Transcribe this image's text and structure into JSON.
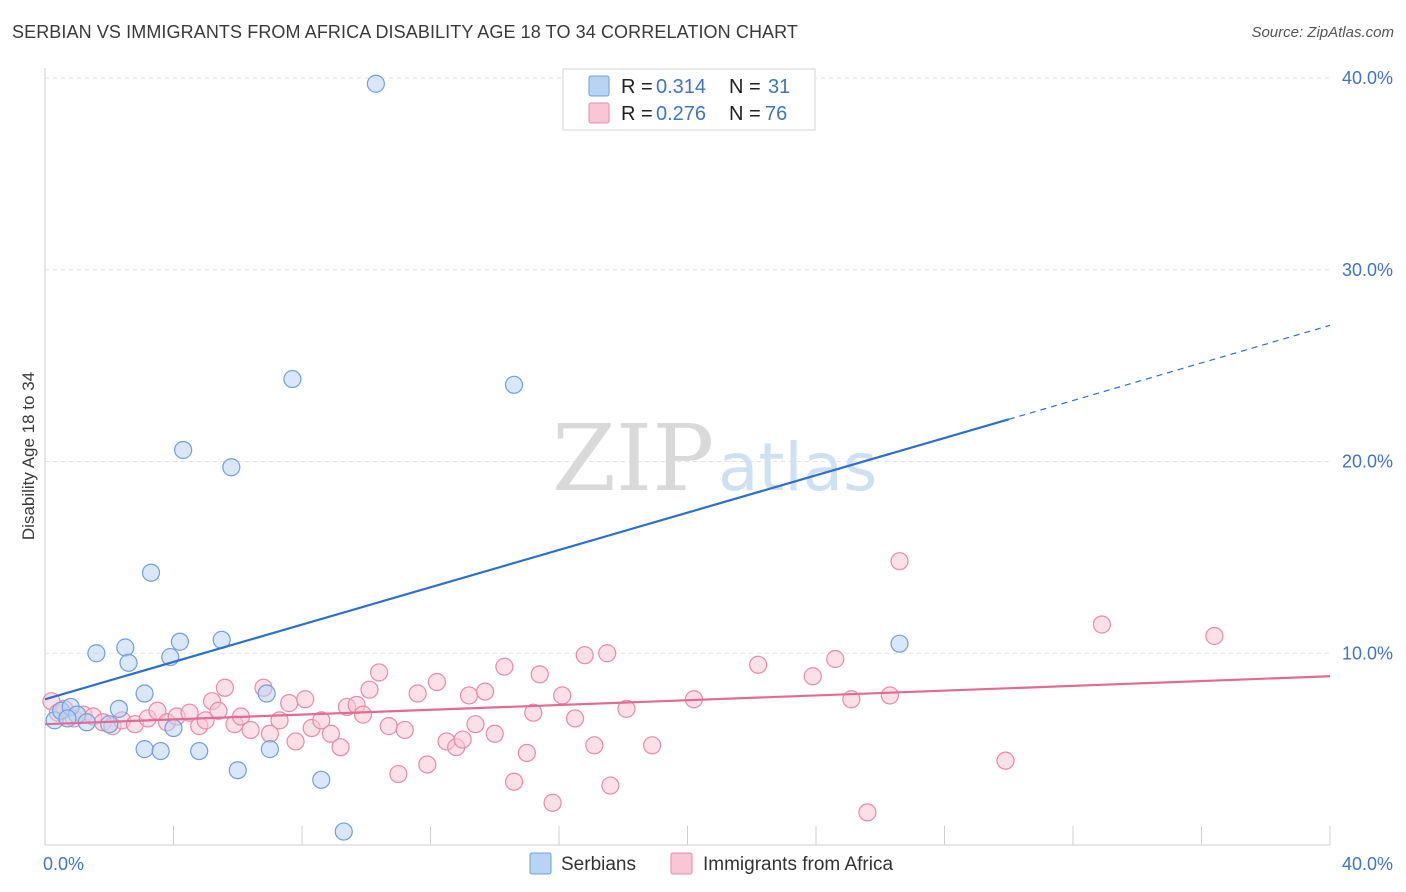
{
  "header": {
    "title": "SERBIAN VS IMMIGRANTS FROM AFRICA DISABILITY AGE 18 TO 34 CORRELATION CHART",
    "source": "Source: ZipAtlas.com"
  },
  "watermark": {
    "part1": "ZIP",
    "part2": "atlas"
  },
  "colors": {
    "serbians_fill": "#b9d3f3",
    "serbians_stroke": "#6f9fdc",
    "serbians_line": "#2c6fcc",
    "africa_fill": "#f9c6d6",
    "africa_stroke": "#e88aa8",
    "africa_line": "#e26b96",
    "grid": "#e2e2e2",
    "axis_label": "#3f74c9"
  },
  "legend": {
    "serbians": {
      "r_label": "R = ",
      "r_value": "0.314",
      "n_label": "N = ",
      "n_value": "31"
    },
    "africa": {
      "r_label": "R = ",
      "r_value": "0.276",
      "n_label": "N = ",
      "n_value": "76"
    }
  },
  "chart_data": {
    "type": "scatter",
    "title": "SERBIAN VS IMMIGRANTS FROM AFRICA DISABILITY AGE 18 TO 34 CORRELATION CHART",
    "xlabel": "",
    "ylabel": "Disability Age 18 to 34",
    "xlim": [
      0,
      40
    ],
    "ylim": [
      0,
      40
    ],
    "x_tick_labels": [
      "0.0%",
      "40.0%"
    ],
    "y_tick_values": [
      10,
      20,
      30,
      40
    ],
    "y_tick_labels": [
      "10.0%",
      "20.0%",
      "30.0%",
      "40.0%"
    ],
    "series": [
      {
        "name": "Serbians",
        "R": 0.314,
        "N": 31,
        "trend": {
          "x0": 0,
          "y0": 7.6,
          "x1": 30,
          "y1": 22.2,
          "dash_to_x": 40,
          "dash_to_y": 27.1
        },
        "points": [
          [
            0.3,
            6.5
          ],
          [
            0.5,
            7.0
          ],
          [
            0.8,
            7.2
          ],
          [
            1.0,
            6.8
          ],
          [
            0.7,
            6.6
          ],
          [
            1.6,
            10.0
          ],
          [
            2.3,
            7.1
          ],
          [
            2.5,
            10.3
          ],
          [
            2.6,
            9.5
          ],
          [
            3.1,
            5.0
          ],
          [
            3.1,
            7.9
          ],
          [
            3.3,
            14.2
          ],
          [
            3.6,
            4.9
          ],
          [
            3.9,
            9.8
          ],
          [
            4.0,
            6.1
          ],
          [
            4.2,
            10.6
          ],
          [
            4.3,
            20.6
          ],
          [
            4.8,
            4.9
          ],
          [
            5.5,
            10.7
          ],
          [
            5.8,
            19.7
          ],
          [
            6.0,
            3.9
          ],
          [
            6.9,
            7.9
          ],
          [
            7.0,
            5.0
          ],
          [
            7.7,
            24.3
          ],
          [
            8.6,
            3.4
          ],
          [
            9.3,
            0.7
          ],
          [
            10.3,
            39.7
          ],
          [
            14.6,
            24.0
          ],
          [
            26.6,
            10.5
          ],
          [
            2.0,
            6.3
          ],
          [
            1.3,
            6.4
          ]
        ]
      },
      {
        "name": "Immigrants from Africa",
        "R": 0.276,
        "N": 76,
        "trend": {
          "x0": 0,
          "y0": 6.3,
          "x1": 40,
          "y1": 8.8
        },
        "points": [
          [
            0.2,
            7.5
          ],
          [
            0.4,
            6.9
          ],
          [
            0.6,
            7.1
          ],
          [
            0.9,
            6.6
          ],
          [
            1.2,
            6.8
          ],
          [
            1.5,
            6.7
          ],
          [
            1.8,
            6.4
          ],
          [
            2.1,
            6.2
          ],
          [
            2.4,
            6.5
          ],
          [
            2.8,
            6.3
          ],
          [
            3.2,
            6.6
          ],
          [
            3.5,
            7.0
          ],
          [
            3.8,
            6.4
          ],
          [
            4.1,
            6.7
          ],
          [
            4.5,
            6.9
          ],
          [
            4.8,
            6.2
          ],
          [
            5.0,
            6.5
          ],
          [
            5.2,
            7.5
          ],
          [
            5.4,
            7.0
          ],
          [
            5.6,
            8.2
          ],
          [
            5.9,
            6.3
          ],
          [
            6.1,
            6.7
          ],
          [
            6.4,
            6.0
          ],
          [
            6.8,
            8.2
          ],
          [
            7.0,
            5.8
          ],
          [
            7.3,
            6.5
          ],
          [
            7.6,
            7.4
          ],
          [
            7.8,
            5.4
          ],
          [
            8.1,
            7.6
          ],
          [
            8.3,
            6.1
          ],
          [
            8.6,
            6.5
          ],
          [
            8.9,
            5.8
          ],
          [
            9.2,
            5.1
          ],
          [
            9.4,
            7.2
          ],
          [
            9.7,
            7.3
          ],
          [
            10.1,
            8.1
          ],
          [
            10.4,
            9.0
          ],
          [
            10.7,
            6.2
          ],
          [
            11.0,
            3.7
          ],
          [
            11.2,
            6.0
          ],
          [
            11.6,
            7.9
          ],
          [
            11.9,
            4.2
          ],
          [
            12.2,
            8.5
          ],
          [
            12.5,
            5.4
          ],
          [
            12.8,
            5.1
          ],
          [
            13.2,
            7.8
          ],
          [
            13.4,
            6.3
          ],
          [
            13.7,
            8.0
          ],
          [
            14.0,
            5.8
          ],
          [
            14.3,
            9.3
          ],
          [
            14.6,
            3.3
          ],
          [
            15.0,
            4.8
          ],
          [
            15.2,
            6.9
          ],
          [
            15.4,
            8.9
          ],
          [
            15.8,
            2.2
          ],
          [
            16.1,
            7.8
          ],
          [
            16.5,
            6.6
          ],
          [
            16.8,
            9.9
          ],
          [
            17.1,
            5.2
          ],
          [
            17.5,
            10.0
          ],
          [
            17.6,
            3.1
          ],
          [
            18.1,
            7.1
          ],
          [
            18.9,
            5.2
          ],
          [
            20.2,
            7.6
          ],
          [
            22.2,
            9.4
          ],
          [
            23.9,
            8.8
          ],
          [
            24.6,
            9.7
          ],
          [
            25.1,
            7.6
          ],
          [
            25.6,
            1.7
          ],
          [
            26.3,
            7.8
          ],
          [
            26.6,
            14.8
          ],
          [
            29.9,
            4.4
          ],
          [
            32.9,
            11.5
          ],
          [
            36.4,
            10.9
          ],
          [
            13.0,
            5.5
          ],
          [
            9.9,
            6.8
          ]
        ]
      }
    ],
    "legend": [
      "Serbians",
      "Immigrants from Africa"
    ]
  },
  "bottom_legend": {
    "serbians": "Serbians",
    "africa": "Immigrants from Africa"
  }
}
